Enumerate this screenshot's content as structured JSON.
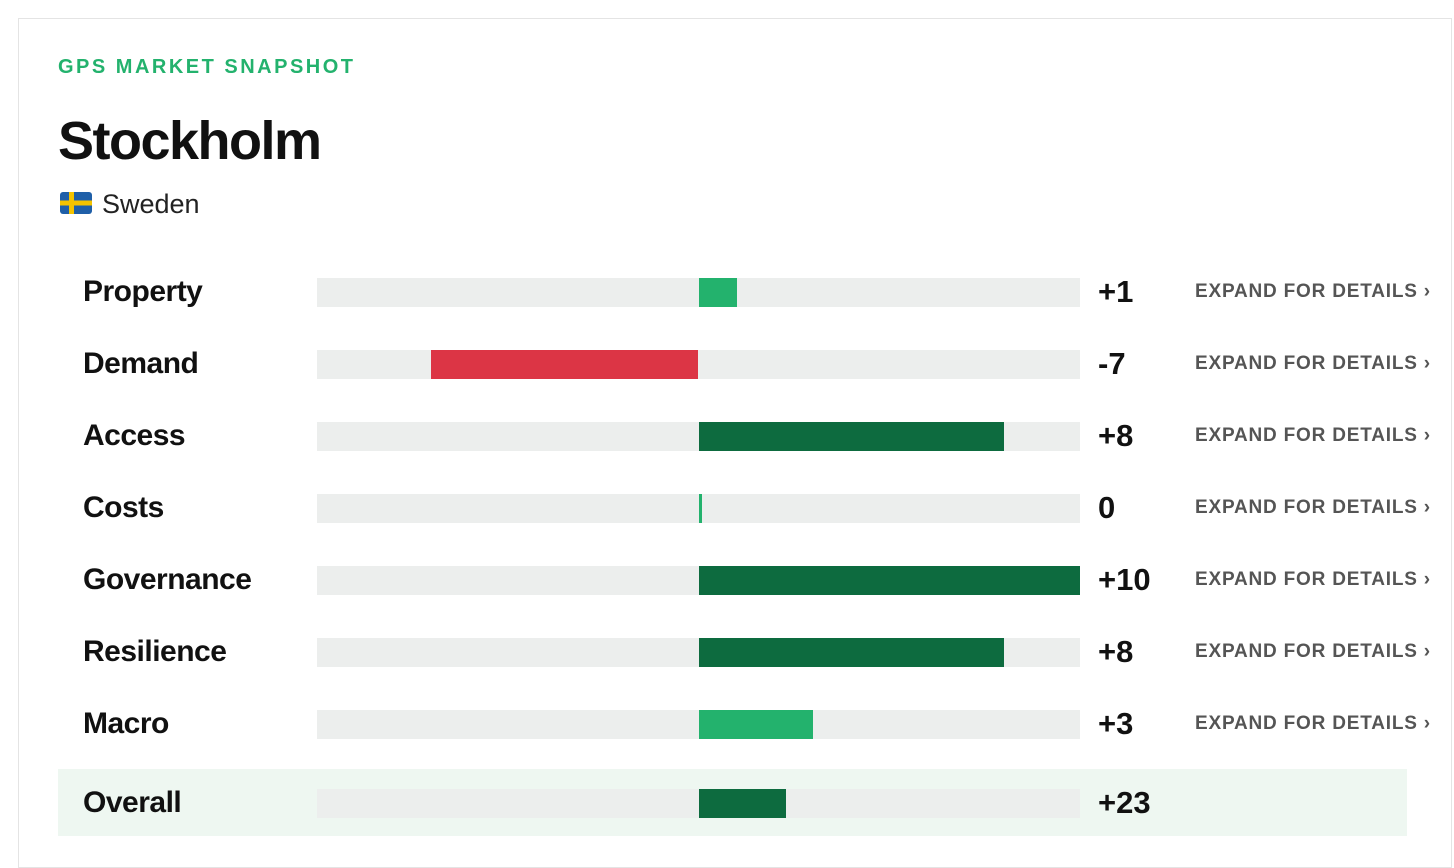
{
  "header": {
    "eyebrow": "GPS MARKET SNAPSHOT",
    "title": "Stockholm",
    "country": "Sweden"
  },
  "rows": {
    "xlim": [
      -10,
      10
    ],
    "items": [
      {
        "label": "Property",
        "value": 1,
        "value_label": "+1",
        "color": "#23b26d",
        "action": "EXPAND FOR DETAILS ›"
      },
      {
        "label": "Demand",
        "value": -7,
        "value_label": "-7",
        "color": "#dc3545",
        "action": "EXPAND FOR DETAILS ›"
      },
      {
        "label": "Access",
        "value": 8,
        "value_label": "+8",
        "color": "#0d6b3f",
        "action": "EXPAND FOR DETAILS ›"
      },
      {
        "label": "Costs",
        "value": 0,
        "color": "#23b26d",
        "action": "EXPAND FOR DETAILS ›"
      },
      {
        "label": "Governance",
        "value": 10,
        "value_label": "+10",
        "color": "#0d6b3f",
        "action": "EXPAND FOR DETAILS ›"
      },
      {
        "label": "Resilience",
        "value": 8,
        "value_label": "+8",
        "color": "#0d6b3f",
        "action": "EXPAND FOR DETAILS ›"
      },
      {
        "label": "Macro",
        "value": 3,
        "value_label": "+3",
        "color": "#23b26d",
        "action": "EXPAND FOR DETAILS ›"
      }
    ]
  },
  "overall": {
    "label": "Overall",
    "value": 23,
    "value_label": "+23",
    "color": "#0d6b3f",
    "xlim": [
      -100,
      100
    ]
  }
}
